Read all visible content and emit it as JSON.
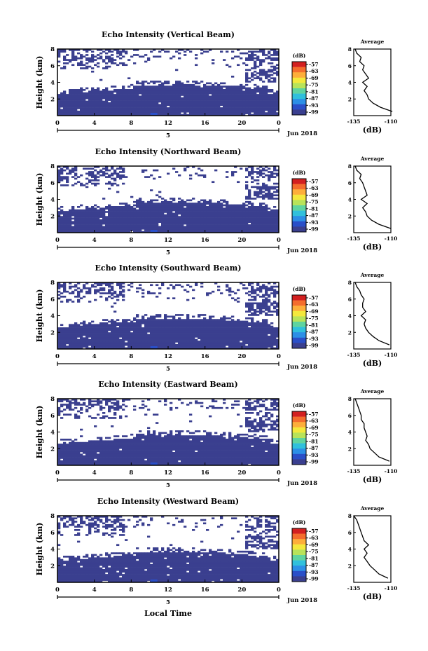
{
  "chart_data": {
    "type": "heatmap",
    "figure": {
      "date_label": "Jun 2018",
      "xlabel": "Local Time"
    },
    "colorbar": {
      "unit_label": "(dB)",
      "tick_labels": [
        "-57",
        "-63",
        "-69",
        "-75",
        "-81",
        "-87",
        "-93",
        "-99"
      ],
      "colors": [
        "#d32020",
        "#f46d2d",
        "#fdae3a",
        "#f4e83c",
        "#b8e35a",
        "#5fd4a0",
        "#30c0dc",
        "#2c8fe6",
        "#2a4fc8",
        "#3a3f8f"
      ]
    },
    "panels": [
      {
        "title": "Echo Intensity (Vertical Beam)",
        "ylabel": "Height (km)",
        "y_ticks": [
          "8",
          "6",
          "4",
          "2"
        ],
        "x_ticks": [
          "0",
          "4",
          "8",
          "12",
          "16",
          "20",
          "0"
        ],
        "day_label": "5",
        "ylim": [
          0,
          8
        ],
        "xlim": [
          0,
          24
        ],
        "profile": {
          "title": "Average",
          "xlabel": "(dB)",
          "x_ticks": [
            "-135",
            "-110"
          ],
          "y_ticks": [
            "8",
            "6",
            "4",
            "2"
          ],
          "xlim": [
            -135,
            -110
          ],
          "heights": [
            0.5,
            1.0,
            1.5,
            2.0,
            2.5,
            3.0,
            3.5,
            4.0,
            4.5,
            5.0,
            5.5,
            6.0,
            6.5,
            7.0,
            7.5,
            8.0
          ],
          "values": [
            -109,
            -117,
            -122,
            -125,
            -126,
            -128,
            -126,
            -129,
            -125,
            -127,
            -129,
            -128,
            -131,
            -130,
            -133,
            -134
          ]
        }
      },
      {
        "title": "Echo Intensity (Northward Beam)",
        "ylabel": "Height (km)",
        "y_ticks": [
          "8",
          "6",
          "4",
          "2"
        ],
        "x_ticks": [
          "0",
          "4",
          "8",
          "12",
          "16",
          "20",
          "0"
        ],
        "day_label": "5",
        "ylim": [
          0,
          8
        ],
        "xlim": [
          0,
          24
        ],
        "profile": {
          "title": "Average",
          "xlabel": "(dB)",
          "x_ticks": [
            "-135",
            "-110"
          ],
          "y_ticks": [
            "8",
            "6",
            "4",
            "2"
          ],
          "xlim": [
            -135,
            -110
          ],
          "heights": [
            0.5,
            1.0,
            1.5,
            2.0,
            2.5,
            3.0,
            3.5,
            4.0,
            4.5,
            5.0,
            5.5,
            6.0,
            6.5,
            7.0,
            7.5,
            8.0
          ],
          "values": [
            -110,
            -118,
            -123,
            -126,
            -127,
            -129,
            -126,
            -130,
            -126,
            -127,
            -128,
            -129,
            -131,
            -130,
            -133,
            -134
          ]
        }
      },
      {
        "title": "Echo Intensity (Southward Beam)",
        "ylabel": "Height (km)",
        "y_ticks": [
          "8",
          "6",
          "4",
          "2"
        ],
        "x_ticks": [
          "0",
          "4",
          "8",
          "12",
          "16",
          "20",
          "0"
        ],
        "day_label": "5",
        "ylim": [
          0,
          8
        ],
        "xlim": [
          0,
          24
        ],
        "profile": {
          "title": "Average",
          "xlabel": "(dB)",
          "x_ticks": [
            "-135",
            "-110"
          ],
          "y_ticks": [
            "8",
            "6",
            "4",
            "2"
          ],
          "xlim": [
            -135,
            -110
          ],
          "heights": [
            0.5,
            1.0,
            1.5,
            2.0,
            2.5,
            3.0,
            3.5,
            4.0,
            4.5,
            5.0,
            5.5,
            6.0,
            6.5,
            7.0,
            7.5,
            8.0
          ],
          "values": [
            -111,
            -118,
            -122,
            -125,
            -127,
            -128,
            -127,
            -130,
            -127,
            -129,
            -129,
            -128,
            -130,
            -131,
            -133,
            -134
          ]
        }
      },
      {
        "title": "Echo Intensity (Eastward Beam)",
        "ylabel": "Height (km)",
        "y_ticks": [
          "8",
          "6",
          "4",
          "2"
        ],
        "x_ticks": [
          "0",
          "4",
          "8",
          "12",
          "16",
          "20",
          "0"
        ],
        "day_label": "5",
        "ylim": [
          0,
          8
        ],
        "xlim": [
          0,
          24
        ],
        "profile": {
          "title": "Average",
          "xlabel": "(dB)",
          "x_ticks": [
            "-135",
            "-110"
          ],
          "y_ticks": [
            "8",
            "6",
            "4",
            "2"
          ],
          "xlim": [
            -135,
            -110
          ],
          "heights": [
            0.5,
            1.0,
            1.5,
            2.0,
            2.5,
            3.0,
            3.5,
            4.0,
            4.5,
            5.0,
            5.5,
            6.0,
            6.5,
            7.0,
            7.5,
            8.0
          ],
          "values": [
            -111,
            -118,
            -121,
            -124,
            -125,
            -127,
            -126,
            -127,
            -128,
            -128,
            -130,
            -130,
            -131,
            -132,
            -133,
            -134
          ]
        }
      },
      {
        "title": "Echo Intensity (Westward Beam)",
        "ylabel": "Height (km)",
        "y_ticks": [
          "8",
          "6",
          "4",
          "2"
        ],
        "x_ticks": [
          "0",
          "4",
          "8",
          "12",
          "16",
          "20",
          "0"
        ],
        "day_label": "5",
        "ylim": [
          0,
          8
        ],
        "xlim": [
          0,
          24
        ],
        "profile": {
          "title": "Average",
          "xlabel": "(dB)",
          "x_ticks": [
            "-135",
            "-110"
          ],
          "y_ticks": [
            "8",
            "6",
            "4",
            "2"
          ],
          "xlim": [
            -135,
            -110
          ],
          "heights": [
            0.5,
            1.0,
            1.5,
            2.0,
            2.5,
            3.0,
            3.5,
            4.0,
            4.5,
            5.0,
            5.5,
            6.0,
            6.5,
            7.0,
            7.5,
            8.0
          ],
          "values": [
            -112,
            -118,
            -121,
            -124,
            -126,
            -128,
            -126,
            -128,
            -125,
            -128,
            -129,
            -130,
            -131,
            -132,
            -133,
            -135
          ]
        }
      }
    ]
  }
}
